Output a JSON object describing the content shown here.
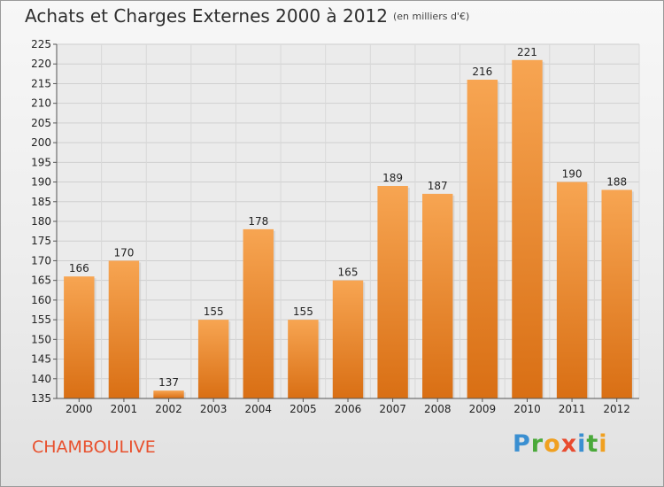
{
  "chart_data": {
    "type": "bar",
    "title": "Achats et Charges Externes 2000 à 2012",
    "unit_label": "(en milliers d'€)",
    "categories": [
      "2000",
      "2001",
      "2002",
      "2003",
      "2004",
      "2005",
      "2006",
      "2007",
      "2008",
      "2009",
      "2010",
      "2011",
      "2012"
    ],
    "values": [
      166,
      170,
      137,
      155,
      178,
      155,
      165,
      189,
      187,
      216,
      221,
      190,
      188
    ],
    "ylim": [
      135,
      225
    ],
    "yticks": [
      135,
      140,
      145,
      150,
      155,
      160,
      165,
      170,
      175,
      180,
      185,
      190,
      195,
      200,
      205,
      210,
      215,
      220,
      225
    ],
    "grid": true,
    "bar_color": "#f0912e",
    "xlabel": "",
    "ylabel": ""
  },
  "location": "CHAMBOULIVE",
  "logo": [
    "P",
    "r",
    "o",
    "x",
    "i",
    "t",
    "i"
  ]
}
